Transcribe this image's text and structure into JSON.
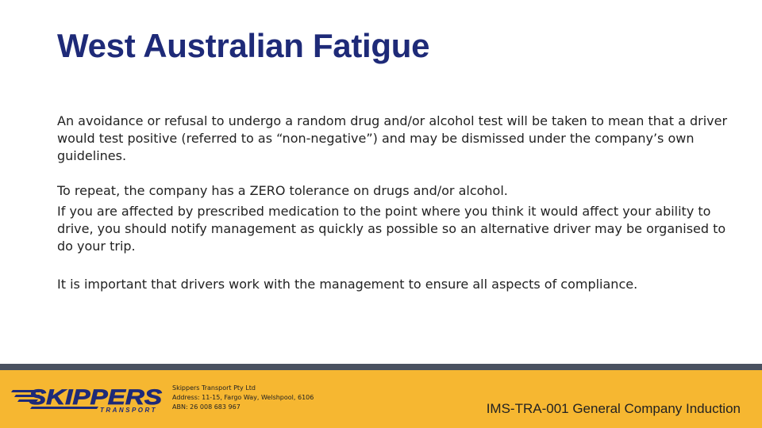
{
  "slide": {
    "title": "West Australian Fatigue",
    "paragraphs": [
      "An avoidance or refusal to undergo a random drug and/or alcohol test will be taken to mean that a driver would test positive (referred to as “non-negative”) and may be dismissed under the company’s own guidelines.",
      "To repeat, the company has a ZERO tolerance on drugs and/or alcohol.",
      "If you are affected by prescribed medication to the point where you think it would affect your ability to drive, you should notify management as quickly as possible so an alternative driver may be organised to do your trip.",
      "It is important that drivers work with the management to ensure all aspects of compliance."
    ]
  },
  "footer": {
    "logo": {
      "wordmark": "SKIPPERS",
      "subtext": "TRANSPORT"
    },
    "company_name": "Skippers Transport Pty Ltd",
    "address": "Address: 11-15, Fargo Way, Welshpool, 6106",
    "abn": "ABN: 26 008 683 967",
    "document_code": "IMS-TRA-001 General Company Induction"
  },
  "colors": {
    "title": "#1e2a78",
    "footer_background": "#f6b731",
    "footer_divider": "#4a5160",
    "logo_blue": "#1e2a78"
  }
}
